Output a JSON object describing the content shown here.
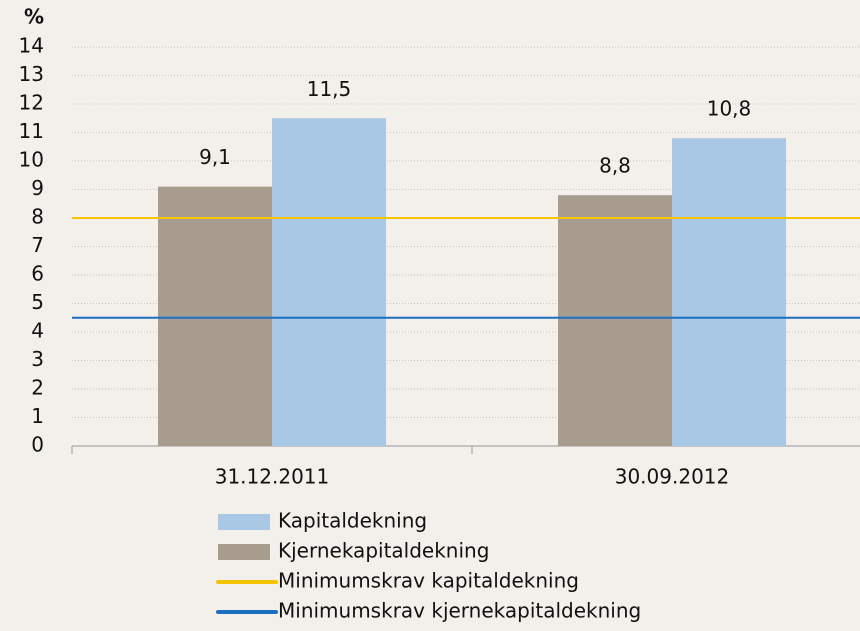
{
  "chart_data": {
    "type": "bar",
    "y_label": "%",
    "categories": [
      "31.12.2011",
      "30.09.2012"
    ],
    "series": [
      {
        "name": "Kjernekapitaldekning",
        "color": "#a89c8f",
        "values": [
          9.1,
          8.8
        ],
        "value_labels": [
          "9,1",
          "8,8"
        ]
      },
      {
        "name": "Kapitaldekning",
        "color": "#a9c8e6",
        "values": [
          11.5,
          10.8
        ],
        "value_labels": [
          "11,5",
          "10,8"
        ]
      }
    ],
    "reference_lines": [
      {
        "name": "Minimumskrav kapitaldekning",
        "color": "#f5c400",
        "value": 8
      },
      {
        "name": "Minimumskrav kjernekapitaldekning",
        "color": "#1a6fbf",
        "value": 4.5
      }
    ],
    "ylim": [
      0,
      14
    ],
    "yticks": [
      0,
      1,
      2,
      3,
      4,
      5,
      6,
      7,
      8,
      9,
      10,
      11,
      12,
      13,
      14
    ],
    "grid": true
  }
}
